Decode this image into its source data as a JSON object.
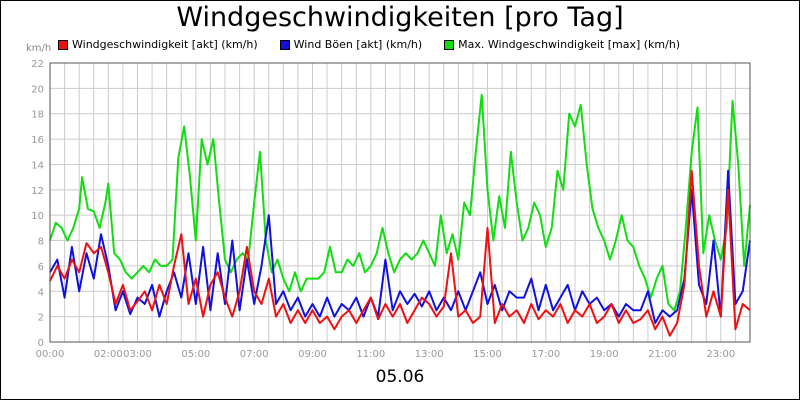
{
  "chart_data": {
    "type": "line",
    "title": "Windgeschwindigkeiten [pro Tag]",
    "date_label": "05.06",
    "y_unit": "km/h",
    "ylim": [
      0,
      22
    ],
    "y_ticks": [
      0,
      2,
      4,
      6,
      8,
      10,
      12,
      14,
      16,
      18,
      20,
      22
    ],
    "x_range_hours": [
      0,
      24
    ],
    "x_ticks": [
      {
        "h": 0,
        "label": "00:00"
      },
      {
        "h": 2,
        "label": "02:00"
      },
      {
        "h": 3,
        "label": "03:00"
      },
      {
        "h": 5,
        "label": "05:00"
      },
      {
        "h": 7,
        "label": "07:00"
      },
      {
        "h": 9,
        "label": "09:00"
      },
      {
        "h": 11,
        "label": "11:00"
      },
      {
        "h": 13,
        "label": "13:00"
      },
      {
        "h": 15,
        "label": "15:00"
      },
      {
        "h": 17,
        "label": "17:00"
      },
      {
        "h": 19,
        "label": "19:00"
      },
      {
        "h": 21,
        "label": "21:00"
      },
      {
        "h": 23,
        "label": "23:00"
      }
    ],
    "grid": true,
    "legend_position": "top-left",
    "series": [
      {
        "name": "Windgeschwindigkeit [akt] (km/h)",
        "color": "#ee1111",
        "points": [
          [
            0,
            4.8
          ],
          [
            0.25,
            6
          ],
          [
            0.5,
            5
          ],
          [
            0.75,
            6.5
          ],
          [
            1,
            5.5
          ],
          [
            1.25,
            7.8
          ],
          [
            1.5,
            7
          ],
          [
            1.75,
            7.5
          ],
          [
            2,
            5.5
          ],
          [
            2.25,
            3
          ],
          [
            2.5,
            4.5
          ],
          [
            2.75,
            2.5
          ],
          [
            3,
            3.2
          ],
          [
            3.25,
            4
          ],
          [
            3.5,
            2.5
          ],
          [
            3.75,
            4.5
          ],
          [
            4,
            3
          ],
          [
            4.25,
            6
          ],
          [
            4.5,
            8.5
          ],
          [
            4.75,
            3
          ],
          [
            5,
            5
          ],
          [
            5.25,
            2
          ],
          [
            5.5,
            4.5
          ],
          [
            5.75,
            5.5
          ],
          [
            6,
            3.5
          ],
          [
            6.25,
            2
          ],
          [
            6.5,
            4
          ],
          [
            6.75,
            7.5
          ],
          [
            7,
            4
          ],
          [
            7.25,
            3
          ],
          [
            7.5,
            5
          ],
          [
            7.75,
            2
          ],
          [
            8,
            3
          ],
          [
            8.25,
            1.5
          ],
          [
            8.5,
            2.5
          ],
          [
            8.75,
            1.5
          ],
          [
            9,
            2.5
          ],
          [
            9.25,
            1.5
          ],
          [
            9.5,
            2
          ],
          [
            9.75,
            1
          ],
          [
            10,
            2
          ],
          [
            10.25,
            2.5
          ],
          [
            10.5,
            1.5
          ],
          [
            10.75,
            2.5
          ],
          [
            11,
            3.5
          ],
          [
            11.25,
            1.8
          ],
          [
            11.5,
            3
          ],
          [
            11.75,
            2
          ],
          [
            12,
            3
          ],
          [
            12.25,
            1.5
          ],
          [
            12.5,
            2.5
          ],
          [
            12.75,
            3.5
          ],
          [
            13,
            3
          ],
          [
            13.25,
            2
          ],
          [
            13.5,
            2.8
          ],
          [
            13.75,
            7
          ],
          [
            14,
            2
          ],
          [
            14.25,
            2.5
          ],
          [
            14.5,
            1.5
          ],
          [
            14.75,
            2
          ],
          [
            15,
            9
          ],
          [
            15.25,
            1.5
          ],
          [
            15.5,
            3
          ],
          [
            15.75,
            2
          ],
          [
            16,
            2.5
          ],
          [
            16.25,
            1.5
          ],
          [
            16.5,
            3
          ],
          [
            16.75,
            1.8
          ],
          [
            17,
            2.5
          ],
          [
            17.25,
            2
          ],
          [
            17.5,
            3
          ],
          [
            17.75,
            1.5
          ],
          [
            18,
            2.5
          ],
          [
            18.25,
            2
          ],
          [
            18.5,
            3
          ],
          [
            18.75,
            1.5
          ],
          [
            19,
            2
          ],
          [
            19.25,
            3
          ],
          [
            19.5,
            1.5
          ],
          [
            19.75,
            2.5
          ],
          [
            20,
            1.5
          ],
          [
            20.25,
            1.8
          ],
          [
            20.5,
            2.5
          ],
          [
            20.75,
            1
          ],
          [
            21,
            2
          ],
          [
            21.25,
            0.5
          ],
          [
            21.5,
            1.5
          ],
          [
            21.75,
            4.5
          ],
          [
            22,
            13.5
          ],
          [
            22.25,
            6
          ],
          [
            22.5,
            2
          ],
          [
            22.75,
            4
          ],
          [
            23,
            2
          ],
          [
            23.25,
            12
          ],
          [
            23.5,
            1
          ],
          [
            23.75,
            3
          ],
          [
            24,
            2.5
          ]
        ]
      },
      {
        "name": "Wind Böen [akt] (km/h)",
        "color": "#1111dd",
        "points": [
          [
            0,
            5.5
          ],
          [
            0.25,
            6.5
          ],
          [
            0.5,
            3.5
          ],
          [
            0.75,
            7.5
          ],
          [
            1,
            4
          ],
          [
            1.25,
            7
          ],
          [
            1.5,
            5
          ],
          [
            1.75,
            8.5
          ],
          [
            2,
            6
          ],
          [
            2.25,
            2.5
          ],
          [
            2.5,
            4
          ],
          [
            2.75,
            2.2
          ],
          [
            3,
            3.5
          ],
          [
            3.25,
            3
          ],
          [
            3.5,
            4.5
          ],
          [
            3.75,
            2
          ],
          [
            4,
            4
          ],
          [
            4.25,
            5.5
          ],
          [
            4.5,
            3.5
          ],
          [
            4.75,
            7
          ],
          [
            5,
            3
          ],
          [
            5.25,
            7.5
          ],
          [
            5.5,
            2.5
          ],
          [
            5.75,
            7
          ],
          [
            6,
            3
          ],
          [
            6.25,
            8
          ],
          [
            6.5,
            2.5
          ],
          [
            6.75,
            6.5
          ],
          [
            7,
            3
          ],
          [
            7.25,
            6
          ],
          [
            7.5,
            10
          ],
          [
            7.75,
            3
          ],
          [
            8,
            4
          ],
          [
            8.25,
            2.5
          ],
          [
            8.5,
            3.5
          ],
          [
            8.75,
            2
          ],
          [
            9,
            3
          ],
          [
            9.25,
            2
          ],
          [
            9.5,
            3.5
          ],
          [
            9.75,
            2
          ],
          [
            10,
            3
          ],
          [
            10.25,
            2.5
          ],
          [
            10.5,
            3.5
          ],
          [
            10.75,
            2
          ],
          [
            11,
            3.5
          ],
          [
            11.25,
            2
          ],
          [
            11.5,
            6.5
          ],
          [
            11.75,
            2.5
          ],
          [
            12,
            4
          ],
          [
            12.25,
            3
          ],
          [
            12.5,
            3.8
          ],
          [
            12.75,
            2.8
          ],
          [
            13,
            4
          ],
          [
            13.25,
            2.5
          ],
          [
            13.5,
            3.5
          ],
          [
            13.75,
            2.5
          ],
          [
            14,
            4
          ],
          [
            14.25,
            2.5
          ],
          [
            14.5,
            4
          ],
          [
            14.75,
            5.5
          ],
          [
            15,
            3
          ],
          [
            15.25,
            4.5
          ],
          [
            15.5,
            2.5
          ],
          [
            15.75,
            4
          ],
          [
            16,
            3.5
          ],
          [
            16.25,
            3.5
          ],
          [
            16.5,
            5
          ],
          [
            16.75,
            2.5
          ],
          [
            17,
            4.5
          ],
          [
            17.25,
            2.5
          ],
          [
            17.5,
            3.5
          ],
          [
            17.75,
            4.5
          ],
          [
            18,
            2.5
          ],
          [
            18.25,
            4
          ],
          [
            18.5,
            3
          ],
          [
            18.75,
            3.5
          ],
          [
            19,
            2.5
          ],
          [
            19.25,
            3
          ],
          [
            19.5,
            2
          ],
          [
            19.75,
            3
          ],
          [
            20,
            2.5
          ],
          [
            20.25,
            2.5
          ],
          [
            20.5,
            4
          ],
          [
            20.75,
            1.5
          ],
          [
            21,
            2.5
          ],
          [
            21.25,
            2
          ],
          [
            21.5,
            2.5
          ],
          [
            21.75,
            5
          ],
          [
            22,
            12
          ],
          [
            22.25,
            4.5
          ],
          [
            22.5,
            3
          ],
          [
            22.75,
            8
          ],
          [
            23,
            2
          ],
          [
            23.25,
            13.5
          ],
          [
            23.5,
            3
          ],
          [
            23.75,
            4
          ],
          [
            24,
            8
          ]
        ]
      },
      {
        "name": "Max. Windgeschwindigkeit [max] (km/h)",
        "color": "#11dd11",
        "points": [
          [
            0,
            8
          ],
          [
            0.2,
            9.4
          ],
          [
            0.4,
            9
          ],
          [
            0.6,
            8
          ],
          [
            0.8,
            9
          ],
          [
            1,
            10.5
          ],
          [
            1.1,
            13
          ],
          [
            1.3,
            10.5
          ],
          [
            1.5,
            10.3
          ],
          [
            1.7,
            9
          ],
          [
            1.9,
            11
          ],
          [
            2,
            12.5
          ],
          [
            2.2,
            7
          ],
          [
            2.4,
            6.5
          ],
          [
            2.6,
            5.5
          ],
          [
            2.8,
            5
          ],
          [
            3,
            5.5
          ],
          [
            3.2,
            6
          ],
          [
            3.4,
            5.5
          ],
          [
            3.6,
            6.5
          ],
          [
            3.8,
            6
          ],
          [
            4,
            6
          ],
          [
            4.2,
            6.5
          ],
          [
            4.4,
            14.5
          ],
          [
            4.6,
            17
          ],
          [
            4.8,
            13
          ],
          [
            5,
            8
          ],
          [
            5.2,
            16
          ],
          [
            5.4,
            14
          ],
          [
            5.6,
            16
          ],
          [
            5.8,
            11
          ],
          [
            6,
            6.5
          ],
          [
            6.2,
            5.5
          ],
          [
            6.4,
            6.5
          ],
          [
            6.6,
            7
          ],
          [
            6.8,
            6.5
          ],
          [
            7,
            11
          ],
          [
            7.2,
            15
          ],
          [
            7.4,
            8
          ],
          [
            7.6,
            5.5
          ],
          [
            7.8,
            6.5
          ],
          [
            8,
            5
          ],
          [
            8.2,
            4
          ],
          [
            8.4,
            5.5
          ],
          [
            8.6,
            4
          ],
          [
            8.8,
            5
          ],
          [
            9,
            5
          ],
          [
            9.2,
            5
          ],
          [
            9.4,
            5.5
          ],
          [
            9.6,
            7.5
          ],
          [
            9.8,
            5.5
          ],
          [
            10,
            5.5
          ],
          [
            10.2,
            6.5
          ],
          [
            10.4,
            6
          ],
          [
            10.6,
            7
          ],
          [
            10.8,
            5.5
          ],
          [
            11,
            6
          ],
          [
            11.2,
            7
          ],
          [
            11.4,
            9
          ],
          [
            11.6,
            7
          ],
          [
            11.8,
            5.5
          ],
          [
            12,
            6.5
          ],
          [
            12.2,
            7
          ],
          [
            12.4,
            6.5
          ],
          [
            12.6,
            7
          ],
          [
            12.8,
            8
          ],
          [
            13,
            7
          ],
          [
            13.2,
            6
          ],
          [
            13.4,
            10
          ],
          [
            13.6,
            7
          ],
          [
            13.8,
            8.5
          ],
          [
            14,
            6.5
          ],
          [
            14.2,
            11
          ],
          [
            14.4,
            10
          ],
          [
            14.6,
            15
          ],
          [
            14.8,
            19.5
          ],
          [
            15,
            12
          ],
          [
            15.2,
            8
          ],
          [
            15.4,
            11.5
          ],
          [
            15.6,
            9
          ],
          [
            15.8,
            15
          ],
          [
            16,
            11
          ],
          [
            16.2,
            8
          ],
          [
            16.4,
            9
          ],
          [
            16.6,
            11
          ],
          [
            16.8,
            10
          ],
          [
            17,
            7.5
          ],
          [
            17.2,
            9
          ],
          [
            17.4,
            13.5
          ],
          [
            17.6,
            12
          ],
          [
            17.8,
            18
          ],
          [
            18,
            17
          ],
          [
            18.2,
            18.7
          ],
          [
            18.4,
            14
          ],
          [
            18.6,
            10.5
          ],
          [
            18.8,
            9
          ],
          [
            19,
            8
          ],
          [
            19.2,
            6.5
          ],
          [
            19.4,
            8
          ],
          [
            19.6,
            10
          ],
          [
            19.8,
            8
          ],
          [
            20,
            7.5
          ],
          [
            20.2,
            6
          ],
          [
            20.4,
            5
          ],
          [
            20.6,
            3.5
          ],
          [
            20.8,
            5
          ],
          [
            21,
            6
          ],
          [
            21.2,
            3
          ],
          [
            21.4,
            2.5
          ],
          [
            21.6,
            4
          ],
          [
            21.8,
            9
          ],
          [
            22,
            15
          ],
          [
            22.2,
            18.5
          ],
          [
            22.4,
            7
          ],
          [
            22.6,
            10
          ],
          [
            22.8,
            8
          ],
          [
            23,
            6.5
          ],
          [
            23.2,
            9
          ],
          [
            23.4,
            19
          ],
          [
            23.6,
            14
          ],
          [
            23.8,
            6
          ],
          [
            24,
            10.8
          ]
        ]
      }
    ]
  }
}
